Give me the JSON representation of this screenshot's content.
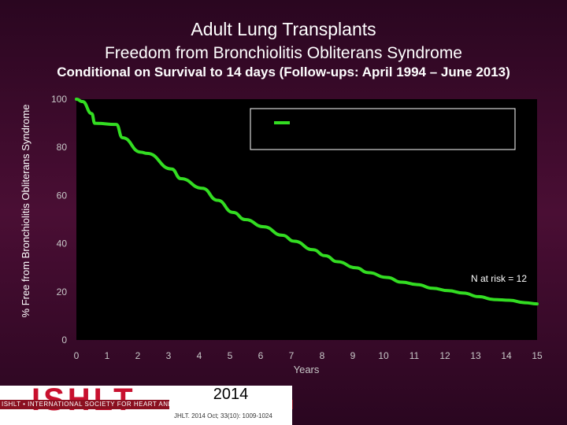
{
  "header": {
    "title": "Adult Lung Transplants",
    "subtitle": "Freedom from Bronchiolitis Obliterans Syndrome",
    "subtitle2": "Conditional on Survival to 14 days (Follow-ups: April 1994 – June 2013)"
  },
  "footer": {
    "logo_text": "ISHLT",
    "logo_subtext": "ISHLT • INTERNATIONAL SOCIETY FOR HEART AND LUNG TRANSPLANTATION",
    "year": "2014",
    "citation": "JHLT. 2014 Oct; 33(10): 1009-1024"
  },
  "colors": {
    "background": "#3a0a2a",
    "plot_area": "#000000",
    "line": "#33dd22",
    "text": "#ffffff",
    "logo_red": "#c8102e"
  },
  "chart_data": {
    "type": "line",
    "title": "",
    "xlabel": "Years",
    "ylabel": "% Free from Bronchiolitis Obliterans Syndrome",
    "xlim": [
      0,
      15
    ],
    "ylim": [
      0,
      100
    ],
    "x_ticks": [
      "0",
      "1",
      "2",
      "3",
      "4",
      "5",
      "6",
      "7",
      "8",
      "9",
      "10",
      "11",
      "12",
      "13",
      "14",
      "15"
    ],
    "y_ticks": [
      "0",
      "20",
      "40",
      "60",
      "80",
      "100"
    ],
    "grid": false,
    "legend": {
      "placement": "top-right",
      "entries": [
        ""
      ]
    },
    "annotation": "N at risk = 12",
    "series": [
      {
        "x": [
          0,
          0.2,
          0.5,
          0.6,
          1.3,
          1.5,
          2.1,
          2.3,
          3.1,
          3.4,
          4.1,
          4.6,
          5.1,
          5.5,
          6.1,
          6.7,
          7.1,
          7.7,
          8.1,
          8.5,
          9.1,
          9.5,
          10.1,
          10.6,
          11.1,
          11.6,
          12.1,
          12.6,
          13.1,
          13.6,
          14.1,
          14.6,
          15.0
        ],
        "y": [
          100,
          99,
          94,
          90,
          89.5,
          84,
          78,
          77.5,
          71,
          67,
          63,
          58,
          53,
          50,
          47,
          43.5,
          41,
          37.5,
          35,
          32.5,
          30,
          28,
          26,
          24,
          23,
          21.5,
          20.5,
          19.5,
          18,
          16.8,
          16.5,
          15.5,
          15
        ]
      }
    ]
  }
}
